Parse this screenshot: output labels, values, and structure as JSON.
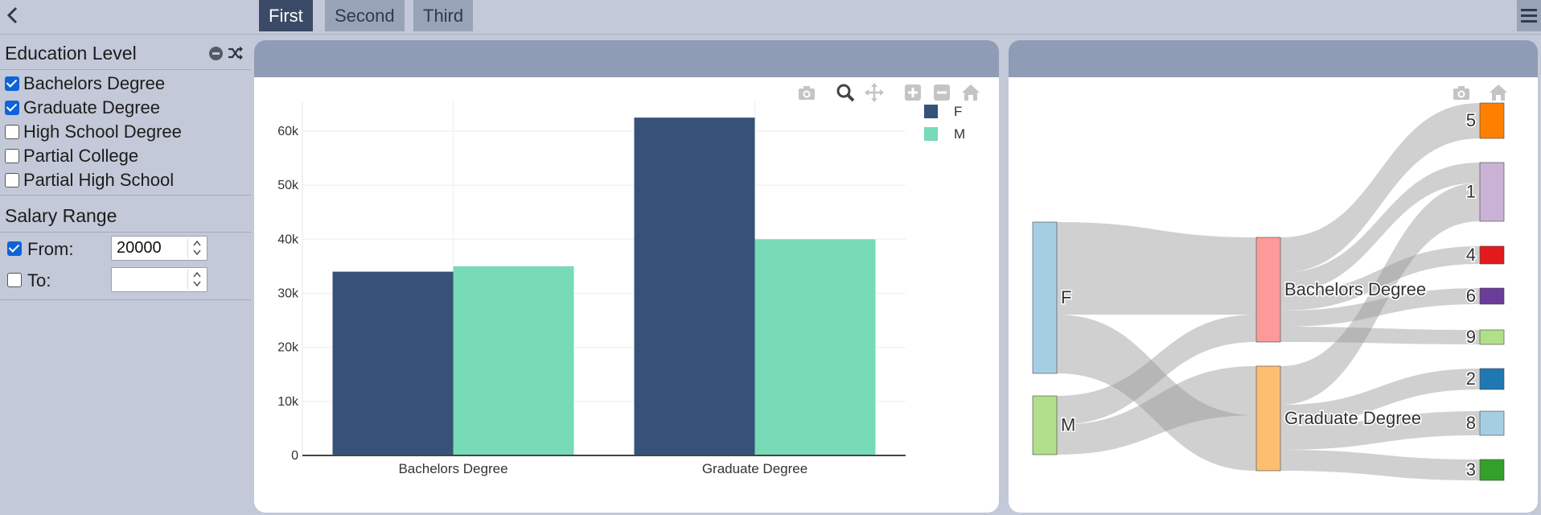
{
  "tabs": [
    {
      "label": "First",
      "active": true
    },
    {
      "label": "Second",
      "active": false
    },
    {
      "label": "Third",
      "active": false
    }
  ],
  "sidebar": {
    "education": {
      "title": "Education Level",
      "options": [
        {
          "label": "Bachelors Degree",
          "checked": true
        },
        {
          "label": "Graduate Degree",
          "checked": true
        },
        {
          "label": "High School Degree",
          "checked": false
        },
        {
          "label": "Partial College",
          "checked": false
        },
        {
          "label": "Partial High School",
          "checked": false
        }
      ]
    },
    "salary": {
      "title": "Salary Range",
      "from_label": "From:",
      "from_checked": true,
      "from_value": "20000",
      "to_label": "To:",
      "to_checked": false,
      "to_value": ""
    }
  },
  "colors": {
    "F": "#375279",
    "M": "#76dbb6",
    "accent_tab": "#3b4a66",
    "panel_header": "#8f9cb6"
  },
  "chart_data": [
    {
      "type": "bar",
      "categories": [
        "Bachelors Degree",
        "Graduate Degree"
      ],
      "series": [
        {
          "name": "F",
          "values": [
            34000,
            62500
          ]
        },
        {
          "name": "M",
          "values": [
            35000,
            40000
          ]
        }
      ],
      "yticks": [
        "0",
        "10k",
        "20k",
        "30k",
        "40k",
        "50k",
        "60k"
      ],
      "ylim": [
        0,
        65500
      ],
      "legend": "top-right",
      "grid": true
    },
    {
      "type": "sankey",
      "nodes": [
        {
          "label": "F",
          "color": "#a6cee3"
        },
        {
          "label": "M",
          "color": "#b2df8a"
        },
        {
          "label": "Bachelors Degree",
          "color": "#fb9a99"
        },
        {
          "label": "Graduate Degree",
          "color": "#fdbf6f"
        },
        {
          "label": "5",
          "color": "#ff7f00"
        },
        {
          "label": "1",
          "color": "#cab2d6"
        },
        {
          "label": "4",
          "color": "#e31a1c"
        },
        {
          "label": "6",
          "color": "#6a3d9a"
        },
        {
          "label": "9",
          "color": "#b2df8a"
        },
        {
          "label": "2",
          "color": "#1f78b4"
        },
        {
          "label": "8",
          "color": "#a6cee3"
        },
        {
          "label": "3",
          "color": "#33a02c"
        }
      ],
      "links": [
        {
          "source": "F",
          "target": "Bachelors Degree"
        },
        {
          "source": "F",
          "target": "Graduate Degree"
        },
        {
          "source": "M",
          "target": "Bachelors Degree"
        },
        {
          "source": "M",
          "target": "Graduate Degree"
        },
        {
          "source": "Bachelors Degree",
          "target": "5"
        },
        {
          "source": "Bachelors Degree",
          "target": "1"
        },
        {
          "source": "Bachelors Degree",
          "target": "4"
        },
        {
          "source": "Bachelors Degree",
          "target": "6"
        },
        {
          "source": "Bachelors Degree",
          "target": "9"
        },
        {
          "source": "Graduate Degree",
          "target": "1"
        },
        {
          "source": "Graduate Degree",
          "target": "2"
        },
        {
          "source": "Graduate Degree",
          "target": "8"
        },
        {
          "source": "Graduate Degree",
          "target": "3"
        }
      ]
    }
  ]
}
